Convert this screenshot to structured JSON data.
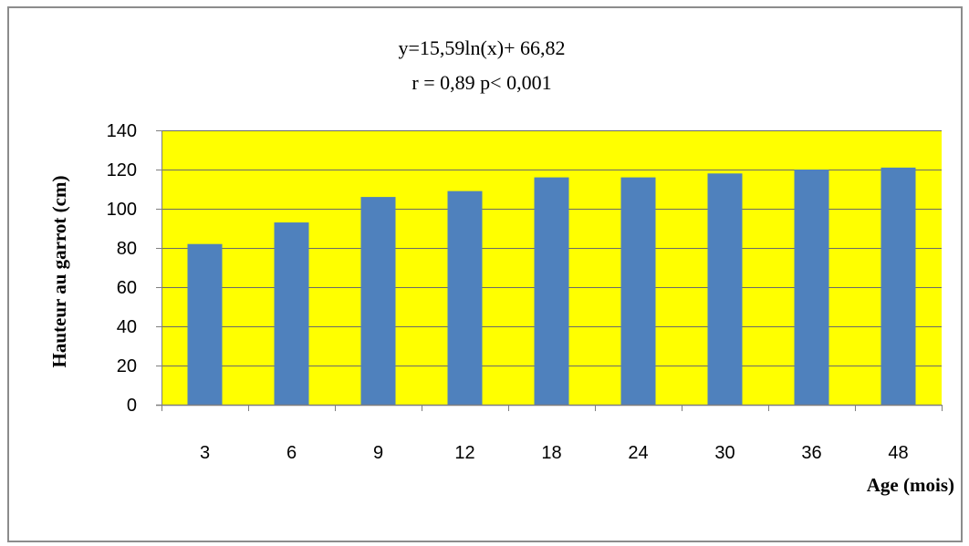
{
  "chart_data": {
    "type": "bar",
    "annotations": [
      "y=15,59ln(x)+ 66,82",
      "r = 0,89  p< 0,001"
    ],
    "xlabel": "Age (mois)",
    "ylabel": "Hauteur au garrot (cm)",
    "categories": [
      "3",
      "6",
      "9",
      "12",
      "18",
      "24",
      "30",
      "36",
      "48"
    ],
    "values": [
      82,
      93,
      106,
      109,
      116,
      116,
      118,
      120,
      121
    ],
    "ylim": [
      0,
      140
    ],
    "yticks": [
      0,
      20,
      40,
      60,
      80,
      100,
      120,
      140
    ],
    "grid": true,
    "legend": "none",
    "colors": {
      "bar": "#4f81bd",
      "plot_background": "#ffff00",
      "gridline": "#6b6b6b",
      "frame": "#8c8c8c"
    }
  }
}
